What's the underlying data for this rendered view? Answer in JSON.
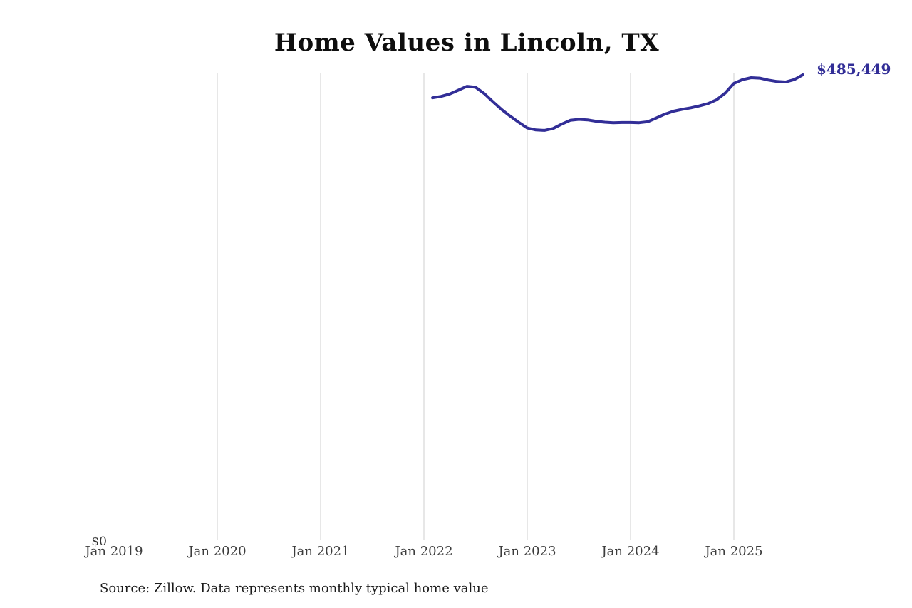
{
  "chart_data": {
    "type": "line",
    "title": "Home Values in Lincoln, TX",
    "end_label": "$485,449",
    "latest_value": 485449,
    "source_note": "Source: Zillow. Data represents monthly typical home value",
    "colors": {
      "line": "#322e97",
      "end_label": "#322e97",
      "gridline": "#cfcfcf",
      "tick_label": "#3d3d3d",
      "background": "#ffffff"
    },
    "grid": "vertical-only",
    "legend": "none",
    "ylabel": "",
    "xlabel": "",
    "y_axis": {
      "zero_label": "$0",
      "min": 0
    },
    "x_ticks": [
      {
        "label": "Jan 2019",
        "year": 2019,
        "gridline": false
      },
      {
        "label": "Jan 2020",
        "year": 2020,
        "gridline": true
      },
      {
        "label": "Jan 2021",
        "year": 2021,
        "gridline": true
      },
      {
        "label": "Jan 2022",
        "year": 2022,
        "gridline": true
      },
      {
        "label": "Jan 2023",
        "year": 2023,
        "gridline": true
      },
      {
        "label": "Jan 2024",
        "year": 2024,
        "gridline": true
      },
      {
        "label": "Jan 2025",
        "year": 2025,
        "gridline": true
      }
    ],
    "series": [
      {
        "name": "Monthly typical home value",
        "months": [
          "2022-02",
          "2022-03",
          "2022-04",
          "2022-05",
          "2022-06",
          "2022-07",
          "2022-08",
          "2022-09",
          "2022-10",
          "2022-11",
          "2022-12",
          "2023-01",
          "2023-02",
          "2023-03",
          "2023-04",
          "2023-05",
          "2023-06",
          "2023-07",
          "2023-08",
          "2023-09",
          "2023-10",
          "2023-11",
          "2023-12",
          "2024-01",
          "2024-02",
          "2024-03",
          "2024-04",
          "2024-05",
          "2024-06",
          "2024-07",
          "2024-08",
          "2024-09",
          "2024-10",
          "2024-11",
          "2024-12",
          "2025-01",
          "2025-02",
          "2025-03",
          "2025-04",
          "2025-05",
          "2025-06",
          "2025-07",
          "2025-08",
          "2025-09"
        ],
        "values": [
          461500,
          463000,
          465500,
          469500,
          473500,
          472500,
          466000,
          457500,
          449500,
          442500,
          436000,
          430000,
          428000,
          427500,
          429500,
          434000,
          438000,
          439000,
          438500,
          437000,
          436000,
          435500,
          435700,
          435700,
          435500,
          436500,
          440500,
          444500,
          447500,
          449500,
          451000,
          453000,
          455500,
          459500,
          466500,
          476500,
          480500,
          482500,
          482000,
          480000,
          478500,
          478000,
          480500,
          485449
        ]
      }
    ]
  }
}
